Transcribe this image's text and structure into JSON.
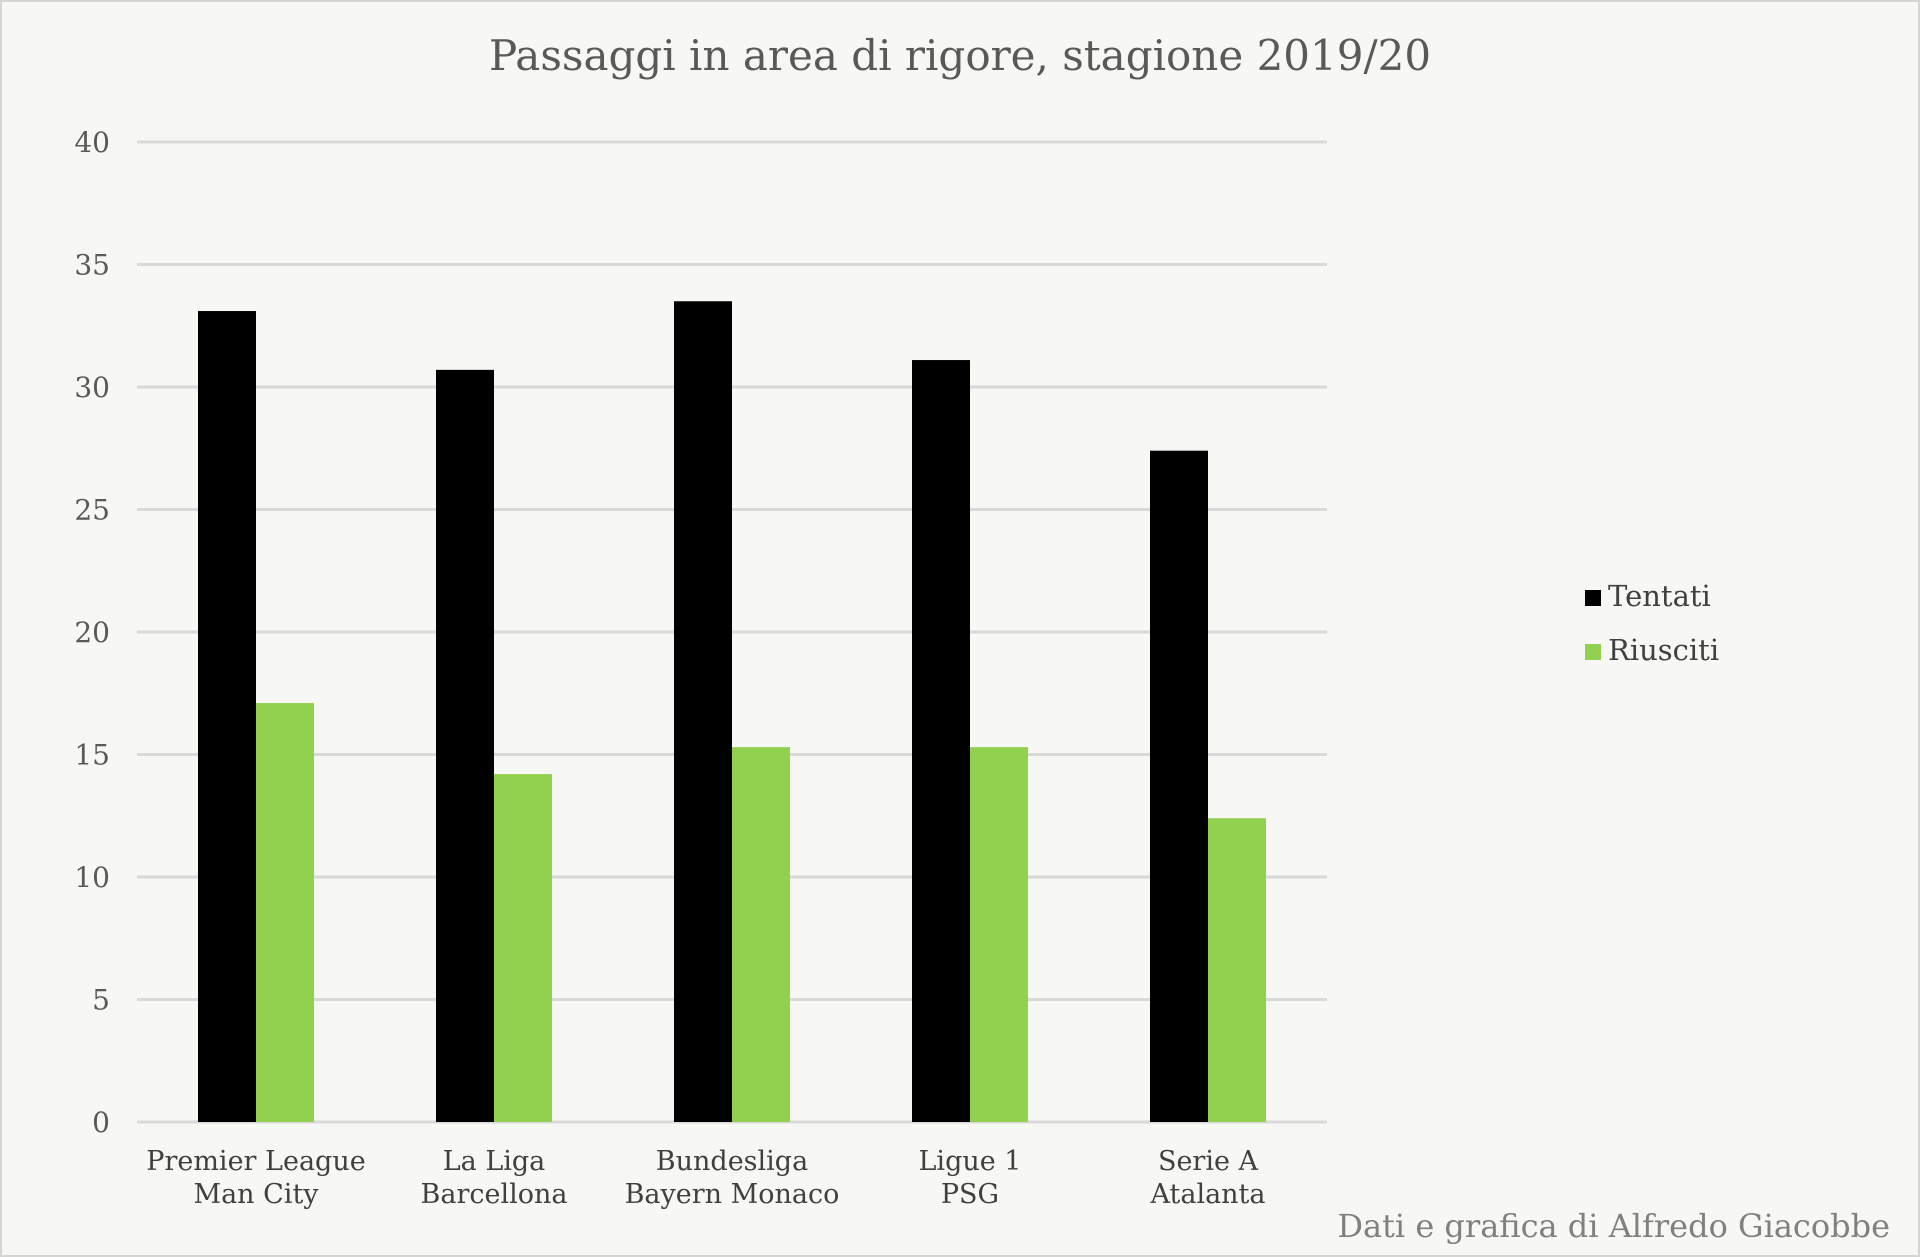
{
  "chart_data": {
    "type": "bar",
    "title": "Passaggi in area di rigore, stagione 2019/20",
    "categories": [
      [
        "Premier League",
        "Man City"
      ],
      [
        "La Liga",
        "Barcellona"
      ],
      [
        "Bundesliga",
        "Bayern Monaco"
      ],
      [
        "Ligue 1",
        "PSG"
      ],
      [
        "Serie A",
        "Atalanta"
      ]
    ],
    "series": [
      {
        "name": "Tentati",
        "color": "#000000",
        "values": [
          33.1,
          30.7,
          33.5,
          31.1,
          27.4
        ]
      },
      {
        "name": "Riusciti",
        "color": "#92d050",
        "values": [
          17.1,
          14.2,
          15.3,
          15.3,
          12.4
        ]
      }
    ],
    "xlabel": "",
    "ylabel": "",
    "ylim": [
      0,
      40
    ],
    "yticks": [
      0,
      5,
      10,
      15,
      20,
      25,
      30,
      35,
      40
    ],
    "grid": true,
    "legend_position": "right"
  },
  "credit": "Dati e grafica di Alfredo Giacobbe"
}
